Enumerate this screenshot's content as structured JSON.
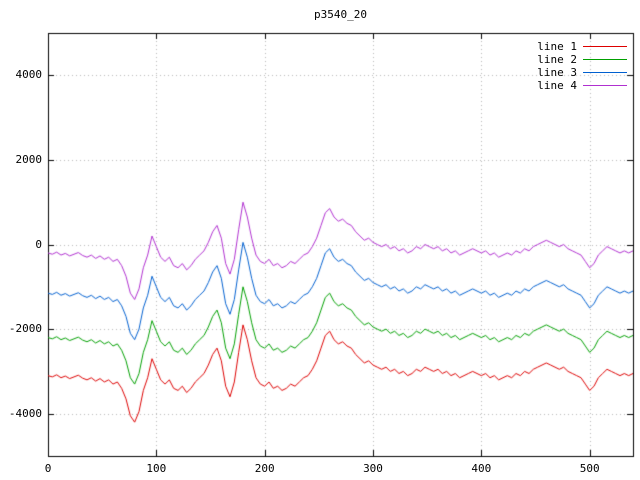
{
  "title": "p3540_20",
  "colors": {
    "background": "#ffffff",
    "border": "#000000",
    "grid": "#b8b8b8",
    "text": "#000000"
  },
  "chart_data": {
    "type": "line",
    "title": "p3540_20",
    "xlabel": "",
    "ylabel": "",
    "xlim": [
      0,
      540
    ],
    "ylim": [
      -5000,
      5000
    ],
    "x_ticks": [
      0,
      100,
      200,
      300,
      400,
      500
    ],
    "y_ticks": [
      -4000,
      -2000,
      0,
      2000,
      4000
    ],
    "grid": "dotted",
    "legend_position": "top-right",
    "x_start": 0,
    "x_step": 4,
    "series": [
      {
        "name": "line 1",
        "color": "#dd0000",
        "values": [
          -3100,
          -3130,
          -3080,
          -3150,
          -3110,
          -3170,
          -3130,
          -3090,
          -3160,
          -3200,
          -3150,
          -3230,
          -3170,
          -3250,
          -3200,
          -3300,
          -3250,
          -3400,
          -3650,
          -4050,
          -4200,
          -3950,
          -3450,
          -3150,
          -2700,
          -2950,
          -3200,
          -3300,
          -3200,
          -3400,
          -3450,
          -3350,
          -3500,
          -3400,
          -3250,
          -3150,
          -3050,
          -2850,
          -2600,
          -2450,
          -2750,
          -3350,
          -3600,
          -3250,
          -2550,
          -1900,
          -2250,
          -2750,
          -3150,
          -3300,
          -3350,
          -3250,
          -3400,
          -3350,
          -3450,
          -3400,
          -3300,
          -3350,
          -3250,
          -3150,
          -3100,
          -2950,
          -2750,
          -2450,
          -2150,
          -2050,
          -2250,
          -2350,
          -2300,
          -2400,
          -2450,
          -2600,
          -2700,
          -2800,
          -2750,
          -2850,
          -2900,
          -2950,
          -2900,
          -3000,
          -2950,
          -3050,
          -3000,
          -3100,
          -3050,
          -2950,
          -3000,
          -2900,
          -2950,
          -3000,
          -2950,
          -3050,
          -3000,
          -3100,
          -3050,
          -3150,
          -3100,
          -3050,
          -3000,
          -3050,
          -3100,
          -3050,
          -3150,
          -3100,
          -3200,
          -3150,
          -3100,
          -3150,
          -3050,
          -3100,
          -3000,
          -3050,
          -2950,
          -2900,
          -2850,
          -2800,
          -2850,
          -2900,
          -2950,
          -2900,
          -3000,
          -3050,
          -3100,
          -3150,
          -3300,
          -3450,
          -3350,
          -3150,
          -3050,
          -2950,
          -3000,
          -3050,
          -3100,
          -3050,
          -3100,
          -3050
        ]
      },
      {
        "name": "line 2",
        "color": "#00a000",
        "values": [
          -2200,
          -2230,
          -2180,
          -2250,
          -2210,
          -2270,
          -2230,
          -2190,
          -2260,
          -2300,
          -2250,
          -2330,
          -2270,
          -2350,
          -2300,
          -2400,
          -2350,
          -2500,
          -2750,
          -3150,
          -3300,
          -3050,
          -2550,
          -2250,
          -1800,
          -2050,
          -2300,
          -2400,
          -2300,
          -2500,
          -2550,
          -2450,
          -2600,
          -2500,
          -2350,
          -2250,
          -2150,
          -1950,
          -1700,
          -1550,
          -1850,
          -2450,
          -2700,
          -2350,
          -1650,
          -1000,
          -1350,
          -1850,
          -2250,
          -2400,
          -2450,
          -2350,
          -2500,
          -2450,
          -2550,
          -2500,
          -2400,
          -2450,
          -2350,
          -2250,
          -2200,
          -2050,
          -1850,
          -1550,
          -1250,
          -1150,
          -1350,
          -1450,
          -1400,
          -1500,
          -1550,
          -1700,
          -1800,
          -1900,
          -1850,
          -1950,
          -2000,
          -2050,
          -2000,
          -2100,
          -2050,
          -2150,
          -2100,
          -2200,
          -2150,
          -2050,
          -2100,
          -2000,
          -2050,
          -2100,
          -2050,
          -2150,
          -2100,
          -2200,
          -2150,
          -2250,
          -2200,
          -2150,
          -2100,
          -2150,
          -2200,
          -2150,
          -2250,
          -2200,
          -2300,
          -2250,
          -2200,
          -2250,
          -2150,
          -2200,
          -2100,
          -2150,
          -2050,
          -2000,
          -1950,
          -1900,
          -1950,
          -2000,
          -2050,
          -2000,
          -2100,
          -2150,
          -2200,
          -2250,
          -2400,
          -2550,
          -2450,
          -2250,
          -2150,
          -2050,
          -2100,
          -2150,
          -2200,
          -2150,
          -2200,
          -2150
        ]
      },
      {
        "name": "line 3",
        "color": "#0060d0",
        "values": [
          -1150,
          -1180,
          -1130,
          -1200,
          -1160,
          -1220,
          -1180,
          -1140,
          -1210,
          -1250,
          -1200,
          -1280,
          -1220,
          -1300,
          -1250,
          -1350,
          -1300,
          -1450,
          -1700,
          -2100,
          -2250,
          -2000,
          -1500,
          -1200,
          -750,
          -1000,
          -1250,
          -1350,
          -1250,
          -1450,
          -1500,
          -1400,
          -1550,
          -1450,
          -1300,
          -1200,
          -1100,
          -900,
          -650,
          -500,
          -800,
          -1400,
          -1650,
          -1300,
          -600,
          50,
          -300,
          -800,
          -1200,
          -1350,
          -1400,
          -1300,
          -1450,
          -1400,
          -1500,
          -1450,
          -1350,
          -1400,
          -1300,
          -1200,
          -1150,
          -1000,
          -800,
          -500,
          -200,
          -100,
          -300,
          -400,
          -350,
          -450,
          -500,
          -650,
          -750,
          -850,
          -800,
          -900,
          -950,
          -1000,
          -950,
          -1050,
          -1000,
          -1100,
          -1050,
          -1150,
          -1100,
          -1000,
          -1050,
          -950,
          -1000,
          -1050,
          -1000,
          -1100,
          -1050,
          -1150,
          -1100,
          -1200,
          -1150,
          -1100,
          -1050,
          -1100,
          -1150,
          -1100,
          -1200,
          -1150,
          -1250,
          -1200,
          -1150,
          -1200,
          -1100,
          -1150,
          -1050,
          -1100,
          -1000,
          -950,
          -900,
          -850,
          -900,
          -950,
          -1000,
          -950,
          -1050,
          -1100,
          -1150,
          -1200,
          -1350,
          -1500,
          -1400,
          -1200,
          -1100,
          -1000,
          -1050,
          -1100,
          -1150,
          -1100,
          -1150,
          -1100
        ]
      },
      {
        "name": "line 4",
        "color": "#b030d0",
        "values": [
          -200,
          -230,
          -180,
          -250,
          -210,
          -270,
          -230,
          -190,
          -260,
          -300,
          -250,
          -330,
          -270,
          -350,
          -300,
          -400,
          -350,
          -500,
          -750,
          -1150,
          -1300,
          -1050,
          -550,
          -250,
          200,
          -50,
          -300,
          -400,
          -300,
          -500,
          -550,
          -450,
          -600,
          -500,
          -350,
          -250,
          -150,
          50,
          300,
          450,
          150,
          -450,
          -700,
          -350,
          350,
          1000,
          650,
          150,
          -250,
          -400,
          -450,
          -350,
          -500,
          -450,
          -550,
          -500,
          -400,
          -450,
          -350,
          -250,
          -200,
          -50,
          150,
          450,
          750,
          850,
          650,
          550,
          600,
          500,
          450,
          300,
          200,
          100,
          150,
          50,
          0,
          -50,
          0,
          -100,
          -50,
          -150,
          -100,
          -200,
          -150,
          -50,
          -100,
          0,
          -50,
          -100,
          -50,
          -150,
          -100,
          -200,
          -150,
          -250,
          -200,
          -150,
          -100,
          -150,
          -200,
          -150,
          -250,
          -200,
          -300,
          -250,
          -200,
          -250,
          -150,
          -200,
          -100,
          -150,
          -50,
          0,
          50,
          100,
          50,
          0,
          -50,
          0,
          -100,
          -150,
          -200,
          -250,
          -400,
          -550,
          -450,
          -250,
          -150,
          -50,
          -100,
          -150,
          -200,
          -150,
          -200,
          -150
        ]
      }
    ]
  }
}
